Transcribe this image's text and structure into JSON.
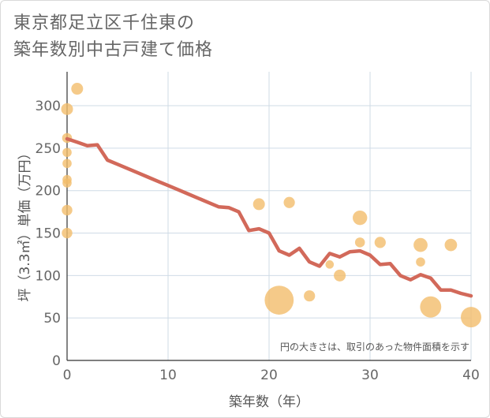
{
  "title_lines": [
    "東京都足立区千住東の",
    "築年数別中古戸建て価格"
  ],
  "chart_data": {
    "type": "scatter+line",
    "xlabel": "築年数（年）",
    "ylabel": "坪（3.3㎡）単価（万円）",
    "xlim": [
      0,
      40
    ],
    "ylim": [
      0,
      340
    ],
    "xticks": [
      0,
      10,
      20,
      30,
      40
    ],
    "yticks": [
      0,
      50,
      100,
      150,
      200,
      250,
      300
    ],
    "grid": true,
    "note": "円の大きさは、取引のあった物件面積を示す",
    "colors": {
      "line": "#d2695a",
      "bubble": "#f3bd6b",
      "grid": "#cfdbe6"
    },
    "scatter": [
      {
        "x": 1,
        "y": 320,
        "size": 1
      },
      {
        "x": 0,
        "y": 296,
        "size": 1
      },
      {
        "x": 0,
        "y": 262,
        "size": 0.7
      },
      {
        "x": 0,
        "y": 245,
        "size": 0.6
      },
      {
        "x": 0,
        "y": 232,
        "size": 0.6
      },
      {
        "x": 0,
        "y": 213,
        "size": 0.6
      },
      {
        "x": 0,
        "y": 209,
        "size": 0.6
      },
      {
        "x": 0,
        "y": 177,
        "size": 0.8
      },
      {
        "x": 0,
        "y": 150,
        "size": 0.8
      },
      {
        "x": 19,
        "y": 184,
        "size": 1
      },
      {
        "x": 22,
        "y": 186,
        "size": 0.9
      },
      {
        "x": 21,
        "y": 71,
        "size": 6
      },
      {
        "x": 24,
        "y": 76,
        "size": 0.9
      },
      {
        "x": 26,
        "y": 113,
        "size": 0.5
      },
      {
        "x": 27,
        "y": 100,
        "size": 1
      },
      {
        "x": 29,
        "y": 168,
        "size": 1.5
      },
      {
        "x": 29,
        "y": 139,
        "size": 0.7
      },
      {
        "x": 31,
        "y": 139,
        "size": 0.9
      },
      {
        "x": 35,
        "y": 136,
        "size": 1.4
      },
      {
        "x": 35,
        "y": 116,
        "size": 0.6
      },
      {
        "x": 36,
        "y": 63,
        "size": 3.2
      },
      {
        "x": 38,
        "y": 136,
        "size": 1.1
      },
      {
        "x": 40,
        "y": 51,
        "size": 3
      }
    ],
    "line": {
      "x": [
        0,
        1,
        2,
        3,
        4,
        5,
        6,
        7,
        8,
        9,
        10,
        11,
        12,
        13,
        14,
        15,
        16,
        17,
        18,
        19,
        20,
        21,
        22,
        23,
        24,
        25,
        26,
        27,
        28,
        29,
        30,
        31,
        32,
        33,
        34,
        35,
        36,
        37,
        38,
        39,
        40
      ],
      "y": [
        261,
        257,
        253,
        254,
        236,
        231,
        226,
        221,
        216,
        211,
        206,
        201,
        196,
        191,
        186,
        181,
        180,
        175,
        153,
        155,
        150,
        129,
        124,
        132,
        116,
        111,
        126,
        122,
        128,
        129,
        124,
        113,
        114,
        100,
        95,
        101,
        97,
        83,
        83,
        79,
        76
      ]
    }
  }
}
